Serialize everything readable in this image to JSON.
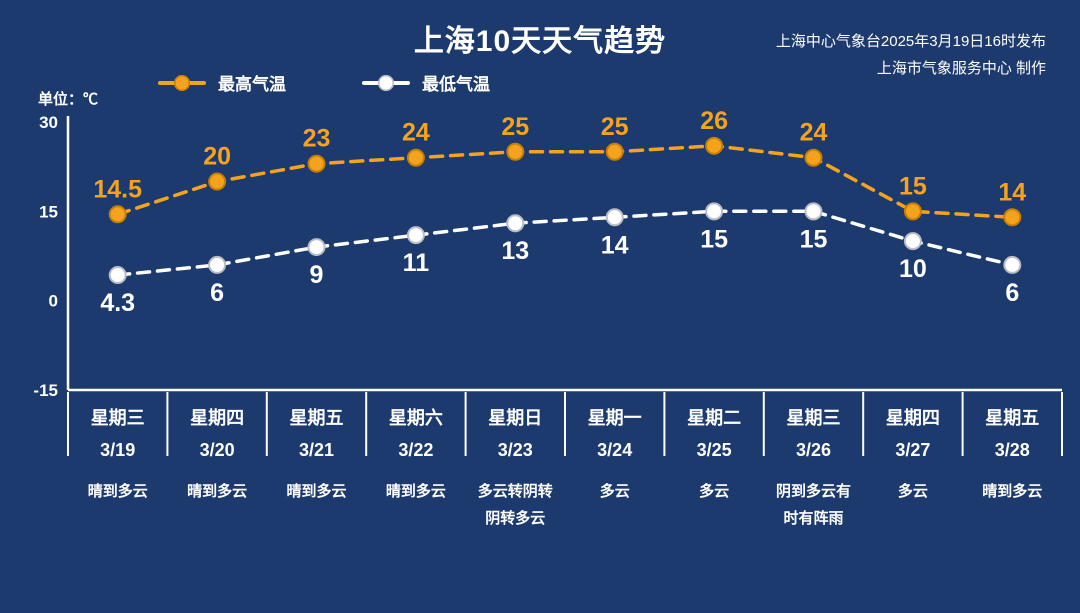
{
  "title": "上海10天天气趋势",
  "source": {
    "line1": "上海中心气象台2025年3月19日16时发布",
    "line2": "上海市气象服务中心 制作"
  },
  "unit_label": "单位：℃",
  "legend": [
    {
      "label": "最高气温",
      "color": "#f5a31e"
    },
    {
      "label": "最低气温",
      "color": "#ffffff"
    }
  ],
  "colors": {
    "background": "#1c3a6e",
    "high": "#f5a31e",
    "high_edge": "#c77f00",
    "low": "#ffffff",
    "low_edge": "#b8bcc4",
    "axis": "#ffffff"
  },
  "chart_data": {
    "type": "line",
    "title": "上海10天天气趋势",
    "unit": "℃",
    "categories": [
      "3/19",
      "3/20",
      "3/21",
      "3/22",
      "3/23",
      "3/24",
      "3/25",
      "3/26",
      "3/27",
      "3/28"
    ],
    "series": [
      {
        "name": "最高气温",
        "color": "#f5a31e",
        "values": [
          14.5,
          20,
          23,
          24,
          25,
          25,
          26,
          24,
          15,
          14
        ]
      },
      {
        "name": "最低气温",
        "color": "#ffffff",
        "values": [
          4.3,
          6,
          9,
          11,
          13,
          14,
          15,
          15,
          10,
          6
        ]
      }
    ],
    "ylim": [
      -15,
      30
    ],
    "yticks": [
      30,
      15,
      0,
      -15
    ],
    "grid": false,
    "line_style": "dashed",
    "legend_position": "top-left"
  },
  "days": [
    {
      "weekday": "星期三",
      "date": "3/19",
      "weather_lines": [
        "晴到多云"
      ]
    },
    {
      "weekday": "星期四",
      "date": "3/20",
      "weather_lines": [
        "晴到多云"
      ]
    },
    {
      "weekday": "星期五",
      "date": "3/21",
      "weather_lines": [
        "晴到多云"
      ]
    },
    {
      "weekday": "星期六",
      "date": "3/22",
      "weather_lines": [
        "晴到多云"
      ]
    },
    {
      "weekday": "星期日",
      "date": "3/23",
      "weather_lines": [
        "多云转阴转",
        "阴转多云"
      ]
    },
    {
      "weekday": "星期一",
      "date": "3/24",
      "weather_lines": [
        "多云"
      ]
    },
    {
      "weekday": "星期二",
      "date": "3/25",
      "weather_lines": [
        "多云"
      ]
    },
    {
      "weekday": "星期三",
      "date": "3/26",
      "weather_lines": [
        "阴到多云有",
        "时有阵雨"
      ]
    },
    {
      "weekday": "星期四",
      "date": "3/27",
      "weather_lines": [
        "多云"
      ]
    },
    {
      "weekday": "星期五",
      "date": "3/28",
      "weather_lines": [
        "晴到多云"
      ]
    }
  ]
}
